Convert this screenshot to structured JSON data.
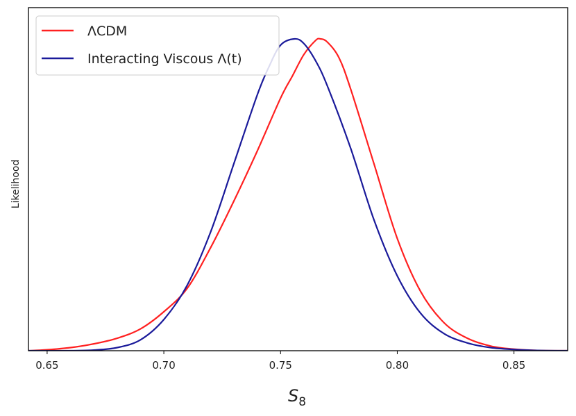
{
  "chart_data": {
    "type": "line",
    "title": "",
    "xlabel": "S",
    "xlabel_subscript": "8",
    "ylabel": "Likelihood",
    "xlim": [
      0.642,
      0.873
    ],
    "ylim": [
      0,
      1.0
    ],
    "xticks": [
      0.65,
      0.7,
      0.75,
      0.8,
      0.85
    ],
    "xtick_labels": [
      "0.65",
      "0.70",
      "0.75",
      "0.80",
      "0.85"
    ],
    "yticks_shown": false,
    "grid": false,
    "legend_position": "top-left",
    "series": [
      {
        "name": "ΛCDM",
        "color": "#ff2020",
        "x": [
          0.642,
          0.65,
          0.66,
          0.67,
          0.68,
          0.69,
          0.7,
          0.71,
          0.72,
          0.73,
          0.74,
          0.75,
          0.755,
          0.76,
          0.765,
          0.767,
          0.77,
          0.775,
          0.78,
          0.79,
          0.8,
          0.81,
          0.82,
          0.83,
          0.84,
          0.85,
          0.86,
          0.873
        ],
        "y": [
          0.0,
          0.003,
          0.01,
          0.022,
          0.04,
          0.07,
          0.125,
          0.2,
          0.33,
          0.48,
          0.64,
          0.81,
          0.88,
          0.95,
          0.995,
          1.0,
          0.99,
          0.94,
          0.84,
          0.6,
          0.36,
          0.19,
          0.09,
          0.04,
          0.015,
          0.005,
          0.001,
          0.0
        ]
      },
      {
        "name": "Interacting Viscous Λ(t)",
        "color": "#1a1a9a",
        "x": [
          0.642,
          0.66,
          0.67,
          0.68,
          0.69,
          0.7,
          0.71,
          0.72,
          0.73,
          0.74,
          0.745,
          0.75,
          0.756,
          0.76,
          0.765,
          0.77,
          0.78,
          0.79,
          0.8,
          0.81,
          0.82,
          0.83,
          0.84,
          0.85,
          0.86,
          0.873
        ],
        "y": [
          0.0,
          0.0,
          0.002,
          0.01,
          0.035,
          0.1,
          0.21,
          0.38,
          0.6,
          0.82,
          0.91,
          0.98,
          1.0,
          0.985,
          0.93,
          0.85,
          0.65,
          0.42,
          0.24,
          0.12,
          0.055,
          0.025,
          0.01,
          0.004,
          0.001,
          0.0
        ]
      }
    ]
  }
}
